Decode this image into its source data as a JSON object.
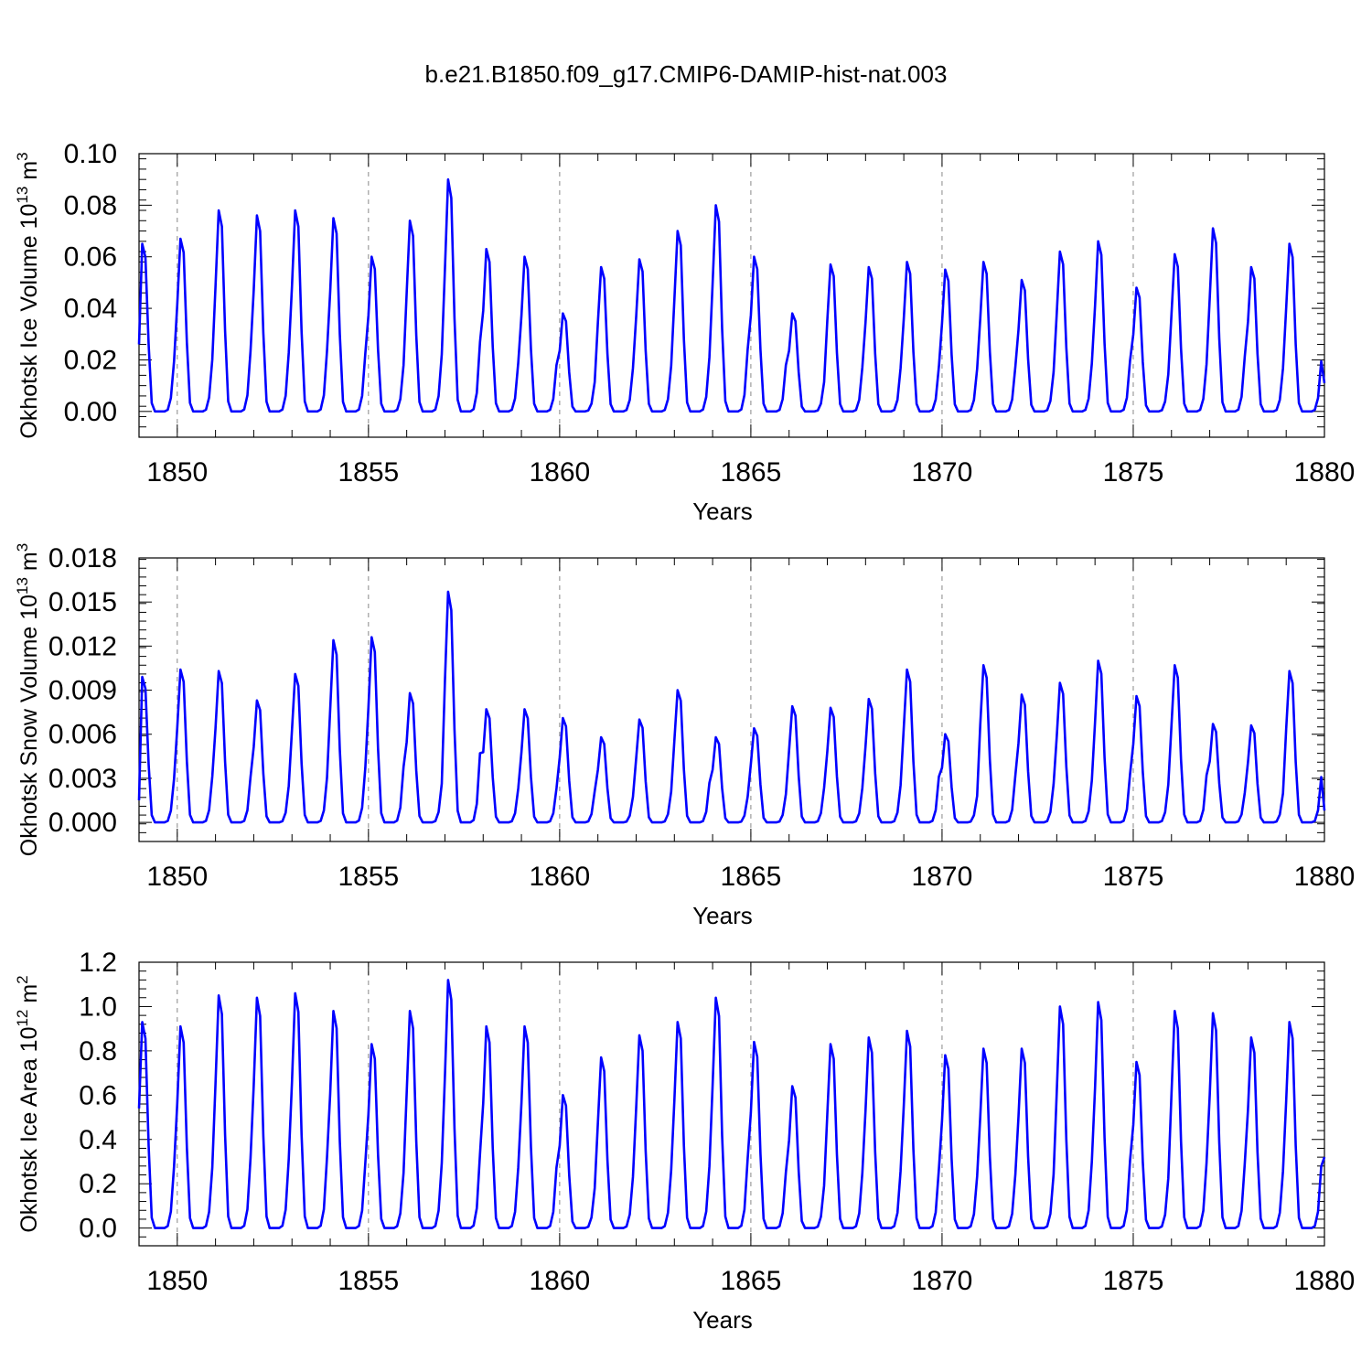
{
  "figure": {
    "title": "b.e21.B1850.f09_g17.CMIP6-DAMIP-hist-nat.003"
  },
  "styles": {
    "line_color": "#0000ff",
    "grid_color": "#888888",
    "axis_color": "#000000"
  },
  "chart_data": [
    {
      "type": "line",
      "title": "b.e21.B1850.f09_g17.CMIP6-DAMIP-hist-nat.003",
      "ylabel": "Okhotsk Ice Volume 10",
      "ylabel_exp": "13",
      "ylabel_unit": " m",
      "ylabel_unit_exp": "3",
      "xlabel": "Years",
      "xlim": [
        1849,
        1880
      ],
      "ylim": [
        -0.01,
        0.1
      ],
      "yticks": [
        0.0,
        0.02,
        0.04,
        0.06,
        0.08,
        0.1
      ],
      "ytick_labels": [
        "0.00",
        "0.02",
        "0.04",
        "0.06",
        "0.08",
        "0.10"
      ],
      "xticks": [
        1850,
        1855,
        1860,
        1865,
        1870,
        1875,
        1880
      ],
      "xtick_labels": [
        "1850",
        "1855",
        "1860",
        "1865",
        "1870",
        "1875",
        "1880"
      ],
      "grid": "dashed vertical lines at labeled years",
      "start_year": 1849,
      "end_year": 1880,
      "peaks": [
        0.065,
        0.067,
        0.078,
        0.076,
        0.078,
        0.075,
        0.06,
        0.074,
        0.09,
        0.063,
        0.06,
        0.038,
        0.056,
        0.059,
        0.07,
        0.08,
        0.06,
        0.038,
        0.057,
        0.056,
        0.058,
        0.055,
        0.058,
        0.051,
        0.062,
        0.066,
        0.048,
        0.061,
        0.071,
        0.056,
        0.065
      ],
      "start_value": 0.026,
      "end_value": 0.011
    },
    {
      "type": "line",
      "ylabel": "Okhotsk Snow Volume 10",
      "ylabel_exp": "13",
      "ylabel_unit": " m",
      "ylabel_unit_exp": "3",
      "xlabel": "Years",
      "xlim": [
        1849,
        1880
      ],
      "ylim": [
        -0.0013,
        0.018
      ],
      "yticks": [
        0.0,
        0.003,
        0.006,
        0.009,
        0.012,
        0.015,
        0.018
      ],
      "ytick_labels": [
        "0.000",
        "0.003",
        "0.006",
        "0.009",
        "0.012",
        "0.015",
        "0.018"
      ],
      "xticks": [
        1850,
        1855,
        1860,
        1865,
        1870,
        1875,
        1880
      ],
      "xtick_labels": [
        "1850",
        "1855",
        "1860",
        "1865",
        "1870",
        "1875",
        "1880"
      ],
      "grid": "dashed vertical lines at labeled years",
      "start_year": 1849,
      "end_year": 1880,
      "peaks": [
        0.0099,
        0.0104,
        0.0103,
        0.0083,
        0.0101,
        0.0124,
        0.0126,
        0.0088,
        0.0157,
        0.0077,
        0.0077,
        0.0071,
        0.0058,
        0.007,
        0.009,
        0.0058,
        0.0064,
        0.0079,
        0.0078,
        0.0084,
        0.0104,
        0.006,
        0.0107,
        0.0087,
        0.0095,
        0.011,
        0.0086,
        0.0107,
        0.0067,
        0.0066,
        0.0103
      ],
      "start_value": 0.0015,
      "end_value": 0.0008
    },
    {
      "type": "line",
      "ylabel": "Okhotsk Ice Area 10",
      "ylabel_exp": "12",
      "ylabel_unit": " m",
      "ylabel_unit_exp": "2",
      "xlabel": "Years",
      "xlim": [
        1849,
        1880
      ],
      "ylim": [
        -0.08,
        1.2
      ],
      "yticks": [
        0.0,
        0.2,
        0.4,
        0.6,
        0.8,
        1.0,
        1.2
      ],
      "ytick_labels": [
        "0.0",
        "0.2",
        "0.4",
        "0.6",
        "0.8",
        "1.0",
        "1.2"
      ],
      "xticks": [
        1850,
        1855,
        1860,
        1865,
        1870,
        1875,
        1880
      ],
      "xtick_labels": [
        "1850",
        "1855",
        "1860",
        "1865",
        "1870",
        "1875",
        "1880"
      ],
      "grid": "dashed vertical lines at labeled years",
      "start_year": 1849,
      "end_year": 1880,
      "peaks": [
        0.93,
        0.91,
        1.05,
        1.04,
        1.06,
        0.98,
        0.83,
        0.98,
        1.12,
        0.91,
        0.91,
        0.6,
        0.77,
        0.87,
        0.93,
        1.04,
        0.84,
        0.64,
        0.83,
        0.86,
        0.89,
        0.78,
        0.81,
        0.81,
        1.0,
        1.02,
        0.75,
        0.98,
        0.97,
        0.86,
        0.93
      ],
      "start_value": 0.54,
      "end_value": 0.32
    }
  ]
}
